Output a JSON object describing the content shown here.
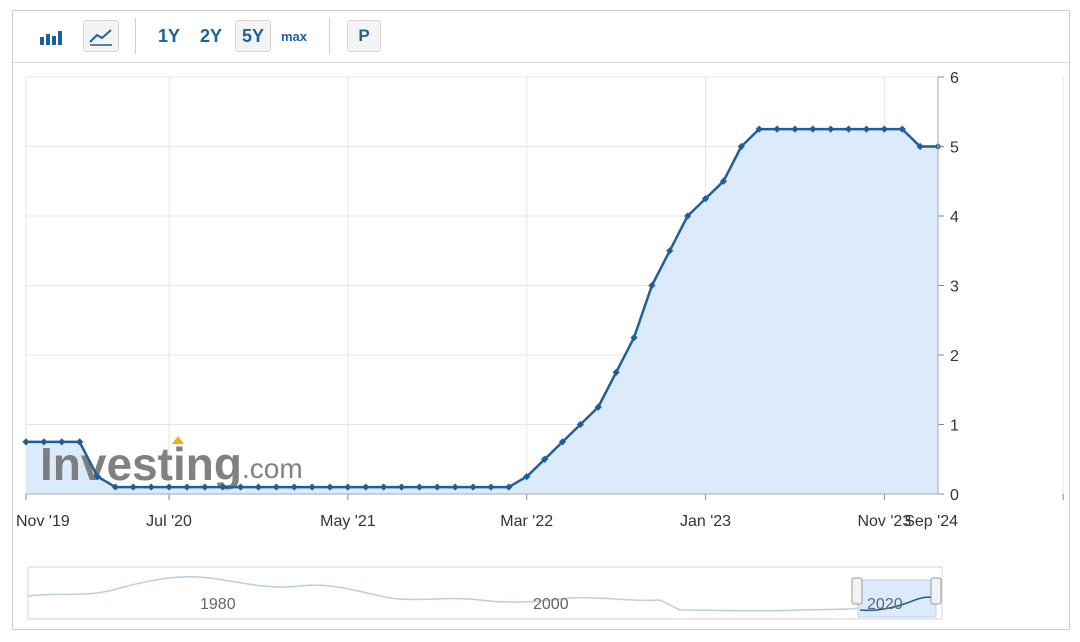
{
  "toolbar": {
    "bar_chart_icon": "bar-chart-icon",
    "line_chart_icon": "line-chart-icon",
    "range_1y": "1Y",
    "range_2y": "2Y",
    "range_5y": "5Y",
    "range_max": "max",
    "p_button": "P",
    "active_range": "5Y"
  },
  "watermark": {
    "brand": "Investing",
    "suffix": ".com"
  },
  "navigator": {
    "labels": [
      "1980",
      "2000",
      "2020"
    ]
  },
  "colors": {
    "line": "#1f5e99",
    "area": "#dcebfb",
    "grid": "#e6e6e6",
    "axis_text": "#333333",
    "navigator_line": "#b8cfe6",
    "accent_orange": "#f5a623"
  },
  "chart_data": {
    "type": "area",
    "title": "",
    "xlabel": "",
    "ylabel": "",
    "ylim": [
      0,
      6
    ],
    "yticks": [
      0,
      1,
      2,
      3,
      4,
      5,
      6
    ],
    "y_axis_side": "right",
    "grid": true,
    "x_tick_labels": [
      "Nov '19",
      "Jul '20",
      "May '21",
      "Mar '22",
      "Jan '23",
      "Nov '23",
      "Sep '24"
    ],
    "x_tick_index": [
      0,
      8,
      18,
      28,
      38,
      48,
      58
    ],
    "series": [
      {
        "values": [
          0.75,
          0.75,
          0.75,
          0.75,
          0.25,
          0.1,
          0.1,
          0.1,
          0.1,
          0.1,
          0.1,
          0.1,
          0.1,
          0.1,
          0.1,
          0.1,
          0.1,
          0.1,
          0.1,
          0.1,
          0.1,
          0.1,
          0.1,
          0.1,
          0.1,
          0.1,
          0.1,
          0.1,
          0.25,
          0.5,
          0.75,
          1.0,
          1.25,
          1.75,
          2.25,
          3.0,
          3.5,
          4.0,
          4.25,
          4.5,
          5.0,
          5.25,
          5.25,
          5.25,
          5.25,
          5.25,
          5.25,
          5.25,
          5.25,
          5.25,
          5.0,
          5.0
        ]
      }
    ]
  }
}
